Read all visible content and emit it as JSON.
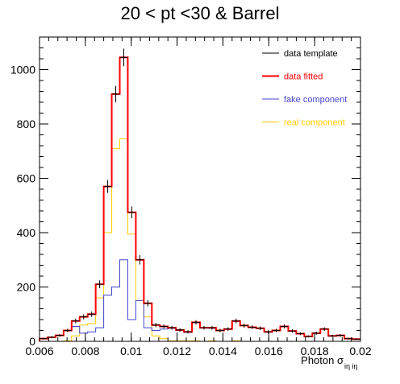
{
  "chart_data": {
    "type": "step-histogram",
    "title": "20 < pt <30 & Barrel",
    "xlabel": "Photon σ",
    "xlabel_subscript": "iη iη",
    "ylabel": "",
    "xlim": [
      0.006,
      0.02
    ],
    "ylim": [
      0,
      1120
    ],
    "bin_width": 0.00035,
    "bin_edges_start": 0.006,
    "xticks": [
      0.006,
      0.008,
      0.01,
      0.012,
      0.014,
      0.016,
      0.018,
      0.02
    ],
    "xtick_labels": [
      "0.006",
      "0.008",
      "0.01",
      "0.012",
      "0.014",
      "0.016",
      "0.018",
      "0.02"
    ],
    "yticks": [
      0,
      200,
      400,
      600,
      800,
      1000
    ],
    "ytick_labels": [
      "0",
      "200",
      "400",
      "600",
      "800",
      "1000"
    ],
    "legend_position": "top-right",
    "series": [
      {
        "name": "data template",
        "color": "#000000",
        "style": "points-with-errors",
        "values": [
          10,
          15,
          22,
          40,
          75,
          90,
          100,
          210,
          570,
          910,
          1045,
          475,
          300,
          140,
          60,
          55,
          50,
          42,
          35,
          70,
          50,
          50,
          40,
          45,
          75,
          58,
          52,
          48,
          35,
          40,
          55,
          38,
          28,
          18,
          30,
          45,
          20,
          22,
          10,
          8
        ]
      },
      {
        "name": "data fitted",
        "color": "#ff0000",
        "style": "step",
        "values": [
          10,
          15,
          22,
          40,
          75,
          90,
          100,
          210,
          570,
          910,
          1045,
          475,
          300,
          140,
          60,
          55,
          50,
          42,
          35,
          70,
          50,
          50,
          40,
          45,
          75,
          58,
          52,
          48,
          35,
          40,
          55,
          38,
          28,
          18,
          30,
          45,
          20,
          22,
          10,
          8
        ]
      },
      {
        "name": "fake component",
        "color": "#4444cc",
        "style": "step",
        "values": [
          10,
          15,
          22,
          38,
          55,
          30,
          35,
          50,
          170,
          200,
          300,
          80,
          150,
          50,
          40,
          45,
          48,
          40,
          33,
          68,
          50,
          48,
          40,
          45,
          73,
          58,
          52,
          48,
          35,
          40,
          55,
          38,
          28,
          18,
          30,
          45,
          20,
          22,
          10,
          8
        ]
      },
      {
        "name": "real component",
        "color": "#ffcc00",
        "style": "step",
        "values": [
          0,
          0,
          0,
          2,
          20,
          60,
          65,
          160,
          400,
          710,
          745,
          395,
          150,
          90,
          20,
          10,
          2,
          2,
          2,
          2,
          0,
          2,
          0,
          0,
          2,
          0,
          0,
          0,
          0,
          0,
          0,
          0,
          0,
          0,
          0,
          0,
          0,
          0,
          0,
          0
        ]
      }
    ]
  }
}
